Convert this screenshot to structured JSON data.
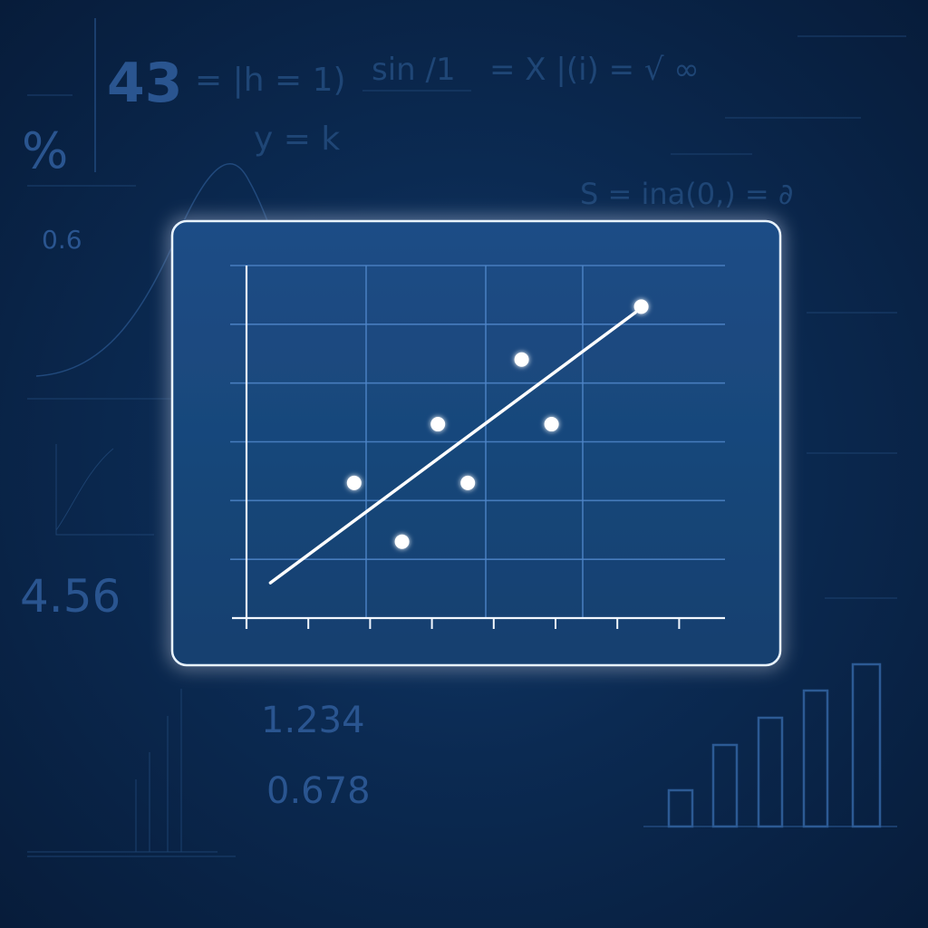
{
  "background": {
    "values": [
      "43",
      "%",
      "0.6",
      "4.56",
      "1.234",
      "0.678"
    ],
    "formula_fragments": [
      "= |h = 1)",
      "sin ∕1",
      "= X |(i) = √ ∞",
      "y = k",
      "S = ina(0,) = ∂"
    ]
  },
  "chart_data": {
    "type": "scatter",
    "title": "",
    "xlabel": "",
    "ylabel": "",
    "grid": true,
    "legend": "none",
    "xlim": [
      0,
      8
    ],
    "ylim": [
      0,
      6
    ],
    "x_ticks": [
      0,
      1,
      2,
      3,
      4,
      5,
      6,
      7
    ],
    "points": [
      {
        "x": 1.8,
        "y": 2.3
      },
      {
        "x": 2.6,
        "y": 1.3
      },
      {
        "x": 3.2,
        "y": 3.3
      },
      {
        "x": 3.7,
        "y": 2.3
      },
      {
        "x": 4.6,
        "y": 4.4
      },
      {
        "x": 5.1,
        "y": 3.3
      },
      {
        "x": 6.6,
        "y": 5.3
      }
    ],
    "trend_line": {
      "from": [
        0.4,
        0.6
      ],
      "to": [
        6.5,
        5.2
      ]
    }
  },
  "colors": {
    "background": "#0b2a52",
    "panel_border": "#e8f3ff",
    "grid": "#4f86c9",
    "marks": "#ffffff"
  }
}
